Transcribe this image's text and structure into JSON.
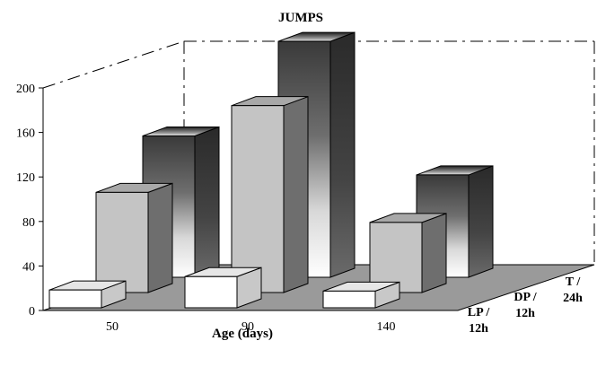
{
  "chart_data": {
    "type": "bar",
    "title": "JUMPS",
    "xlabel": "Age (days)",
    "ylabel": "",
    "ylim": [
      0,
      200
    ],
    "yticks": [
      "0",
      "40",
      "80",
      "120",
      "160",
      "200"
    ],
    "categories": [
      "50",
      "90",
      "140"
    ],
    "series": [
      {
        "name": "LP / 12h",
        "values": [
          16,
          28,
          15
        ],
        "color": "#ffffff"
      },
      {
        "name": "DP / 12h",
        "values": [
          90,
          168,
          63
        ],
        "color": "#c0c0c0"
      },
      {
        "name": "T / 24h",
        "values": [
          127,
          212,
          92
        ],
        "color": "#404040"
      }
    ],
    "grid": false,
    "legend": "depth-axis"
  }
}
